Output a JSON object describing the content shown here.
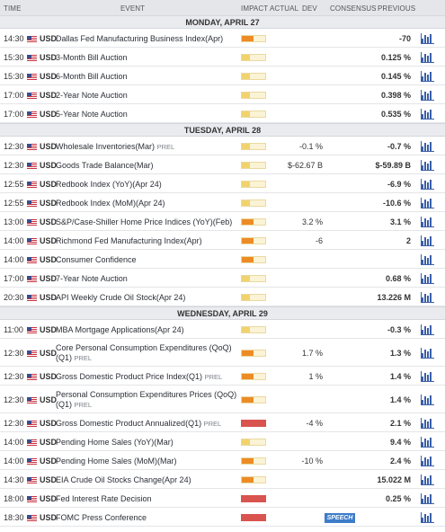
{
  "header": {
    "time": "Time",
    "event": "Event",
    "impact": "Impact",
    "actual": "Actual",
    "dev": "Dev",
    "consensus": "Consensus",
    "previous": "Previous"
  },
  "colors": {
    "low": "#f1d36d",
    "medium": "#ed8b25",
    "high": "#d9534f"
  },
  "days": [
    {
      "label": "MONDAY, APRIL 27",
      "events": [
        {
          "time": "14:30",
          "cur": "USD",
          "name": "Dallas Fed Manufacturing Business Index(Apr)",
          "prel": "",
          "impact": "medium",
          "cons": "",
          "prev": "-70"
        },
        {
          "time": "15:30",
          "cur": "USD",
          "name": "3-Month Bill Auction",
          "prel": "",
          "impact": "low",
          "cons": "",
          "prev": "0.125 %"
        },
        {
          "time": "15:30",
          "cur": "USD",
          "name": "6-Month Bill Auction",
          "prel": "",
          "impact": "low",
          "cons": "",
          "prev": "0.145 %"
        },
        {
          "time": "17:00",
          "cur": "USD",
          "name": "2-Year Note Auction",
          "prel": "",
          "impact": "low",
          "cons": "",
          "prev": "0.398 %"
        },
        {
          "time": "17:00",
          "cur": "USD",
          "name": "5-Year Note Auction",
          "prel": "",
          "impact": "low",
          "cons": "",
          "prev": "0.535 %"
        }
      ]
    },
    {
      "label": "TUESDAY, APRIL 28",
      "events": [
        {
          "time": "12:30",
          "cur": "USD",
          "name": "Wholesale Inventories(Mar)",
          "prel": "PREL",
          "impact": "low",
          "cons": "-0.1 %",
          "prev": "-0.7 %"
        },
        {
          "time": "12:30",
          "cur": "USD",
          "name": "Goods Trade Balance(Mar)",
          "prel": "",
          "impact": "low",
          "cons": "$-62.67 B",
          "prev": "$-59.89 B"
        },
        {
          "time": "12:55",
          "cur": "USD",
          "name": "Redbook Index (YoY)(Apr 24)",
          "prel": "",
          "impact": "low",
          "cons": "",
          "prev": "-6.9 %"
        },
        {
          "time": "12:55",
          "cur": "USD",
          "name": "Redbook Index (MoM)(Apr 24)",
          "prel": "",
          "impact": "low",
          "cons": "",
          "prev": "-10.6 %"
        },
        {
          "time": "13:00",
          "cur": "USD",
          "name": "S&P/Case-Shiller Home Price Indices (YoY)(Feb)",
          "prel": "",
          "impact": "medium",
          "cons": "3.2 %",
          "prev": "3.1 %"
        },
        {
          "time": "14:00",
          "cur": "USD",
          "name": "Richmond Fed Manufacturing Index(Apr)",
          "prel": "",
          "impact": "medium",
          "cons": "-6",
          "prev": "2"
        },
        {
          "time": "14:00",
          "cur": "USD",
          "name": "Consumer Confidence",
          "prel": "",
          "impact": "medium",
          "cons": "",
          "prev": ""
        },
        {
          "time": "17:00",
          "cur": "USD",
          "name": "7-Year Note Auction",
          "prel": "",
          "impact": "low",
          "cons": "",
          "prev": "0.68 %"
        },
        {
          "time": "20:30",
          "cur": "USD",
          "name": "API Weekly Crude Oil Stock(Apr 24)",
          "prel": "",
          "impact": "low",
          "cons": "",
          "prev": "13.226 M"
        }
      ]
    },
    {
      "label": "WEDNESDAY, APRIL 29",
      "events": [
        {
          "time": "11:00",
          "cur": "USD",
          "name": "MBA Mortgage Applications(Apr 24)",
          "prel": "",
          "impact": "low",
          "cons": "",
          "prev": "-0.3 %"
        },
        {
          "time": "12:30",
          "cur": "USD",
          "name": "Core Personal Consumption Expenditures (QoQ)",
          "name2": "(Q1)",
          "prel": "PREL",
          "impact": "medium",
          "cons": "1.7 %",
          "prev": "1.3 %"
        },
        {
          "time": "12:30",
          "cur": "USD",
          "name": "Gross Domestic Product Price Index(Q1)",
          "prel": "PREL",
          "impact": "medium",
          "cons": "1 %",
          "prev": "1.4 %"
        },
        {
          "time": "12:30",
          "cur": "USD",
          "name": "Personal Consumption Expenditures Prices (QoQ)",
          "name2": "(Q1)",
          "prel": "PREL",
          "impact": "medium",
          "cons": "",
          "prev": "1.4 %"
        },
        {
          "time": "12:30",
          "cur": "USD",
          "name": "Gross Domestic Product Annualized(Q1)",
          "prel": "PREL",
          "impact": "high",
          "cons": "-4 %",
          "prev": "2.1 %"
        },
        {
          "time": "14:00",
          "cur": "USD",
          "name": "Pending Home Sales (YoY)(Mar)",
          "prel": "",
          "impact": "low",
          "cons": "",
          "prev": "9.4 %"
        },
        {
          "time": "14:00",
          "cur": "USD",
          "name": "Pending Home Sales (MoM)(Mar)",
          "prel": "",
          "impact": "medium",
          "cons": "-10 %",
          "prev": "2.4 %"
        },
        {
          "time": "14:30",
          "cur": "USD",
          "name": "EIA Crude Oil Stocks Change(Apr 24)",
          "prel": "",
          "impact": "medium",
          "cons": "",
          "prev": "15.022 M"
        },
        {
          "time": "18:00",
          "cur": "USD",
          "name": "Fed Interest Rate Decision",
          "prel": "",
          "impact": "high",
          "cons": "",
          "prev": "0.25 %"
        },
        {
          "time": "18:30",
          "cur": "USD",
          "name": "FOMC Press Conference",
          "prel": "",
          "impact": "high",
          "cons": "",
          "prev": "",
          "speech": "SPEECH"
        }
      ]
    }
  ]
}
